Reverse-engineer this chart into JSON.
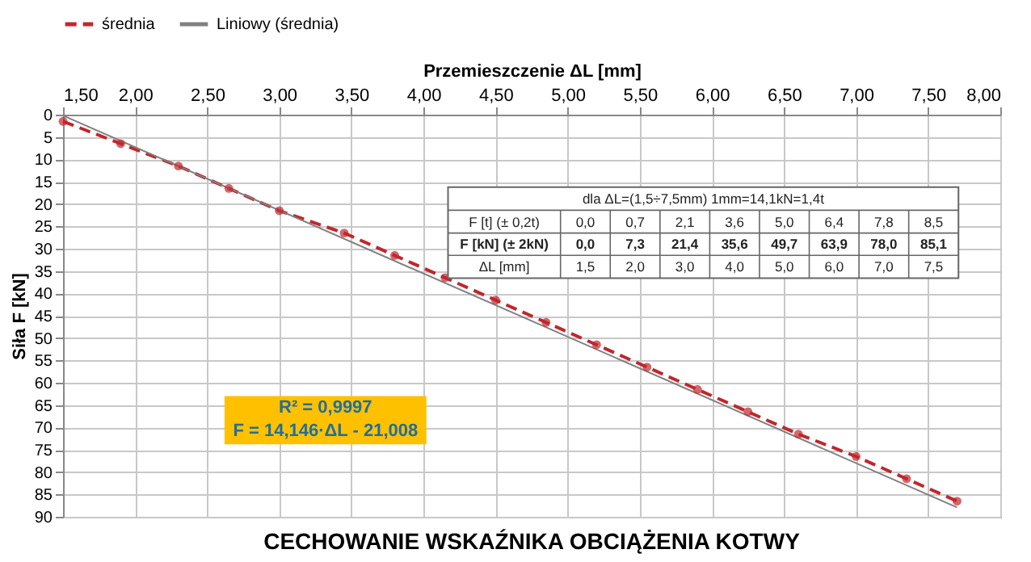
{
  "chart_data": {
    "type": "line",
    "title": "CECHOWANIE WSKAŹNIKA OBCIĄŻENIA KOTWY",
    "xlabel": "Przemieszczenie ΔL [mm]",
    "ylabel": "Siła F [kN]",
    "xlim": [
      1.5,
      8.0
    ],
    "ylim": [
      90,
      0
    ],
    "xticks": [
      {
        "value": 1.5,
        "label": "1,50"
      },
      {
        "value": 2.0,
        "label": "2,00"
      },
      {
        "value": 2.5,
        "label": "2,50"
      },
      {
        "value": 3.0,
        "label": "3,00"
      },
      {
        "value": 3.5,
        "label": "3,50"
      },
      {
        "value": 4.0,
        "label": "4,00"
      },
      {
        "value": 4.5,
        "label": "4,50"
      },
      {
        "value": 5.0,
        "label": "5,00"
      },
      {
        "value": 5.5,
        "label": "5,50"
      },
      {
        "value": 6.0,
        "label": "6,00"
      },
      {
        "value": 6.5,
        "label": "6,50"
      },
      {
        "value": 7.0,
        "label": "7,00"
      },
      {
        "value": 7.5,
        "label": "7,50"
      },
      {
        "value": 8.0,
        "label": "8,00"
      }
    ],
    "yticks": [
      0,
      5,
      10,
      15,
      20,
      25,
      30,
      35,
      40,
      45,
      50,
      55,
      60,
      65,
      70,
      75,
      80,
      85,
      90
    ],
    "grid": true,
    "legend": "top",
    "series": [
      {
        "name": "średnia",
        "color": "#c0272d",
        "marker": "circle",
        "line_style": "dashed",
        "x": [
          1.5,
          1.9,
          2.3,
          2.65,
          3.0,
          3.45,
          3.8,
          4.15,
          4.5,
          4.85,
          5.2,
          5.55,
          5.9,
          6.25,
          6.6,
          7.0,
          7.35,
          7.7
        ],
        "values": [
          1.5,
          6.5,
          11.5,
          16.5,
          21.5,
          26.5,
          31.5,
          36.5,
          41.5,
          46.5,
          51.5,
          56.5,
          61.5,
          66.5,
          71.5,
          76.5,
          81.5,
          86.5
        ]
      },
      {
        "name": "Liniowy (średnia)",
        "color": "#808080",
        "marker": "none",
        "line_style": "solid",
        "type": "line",
        "x": [
          1.5,
          7.7
        ],
        "values": [
          0.2,
          87.9
        ]
      }
    ],
    "annotations": [
      "dla ΔL=(1,5÷7,5mm)    1mm=14,1kN=1,4t",
      "F [t] (± 0,2t)",
      "0,0",
      "0,7",
      "2,1",
      "3,6",
      "5,0",
      "6,4",
      "7,8",
      "8,5",
      "F [kN] (± 2kN)",
      "0,0",
      "7,3",
      "21,4",
      "35,6",
      "49,7",
      "63,9",
      "78,0",
      "85,1",
      "ΔL [mm]",
      "1,5",
      "2,0",
      "3,0",
      "4,0",
      "5,0",
      "6,0",
      "7,0",
      "7,5",
      "R² = 0,9997",
      "F = 14,146·ΔL - 21,008"
    ]
  }
}
